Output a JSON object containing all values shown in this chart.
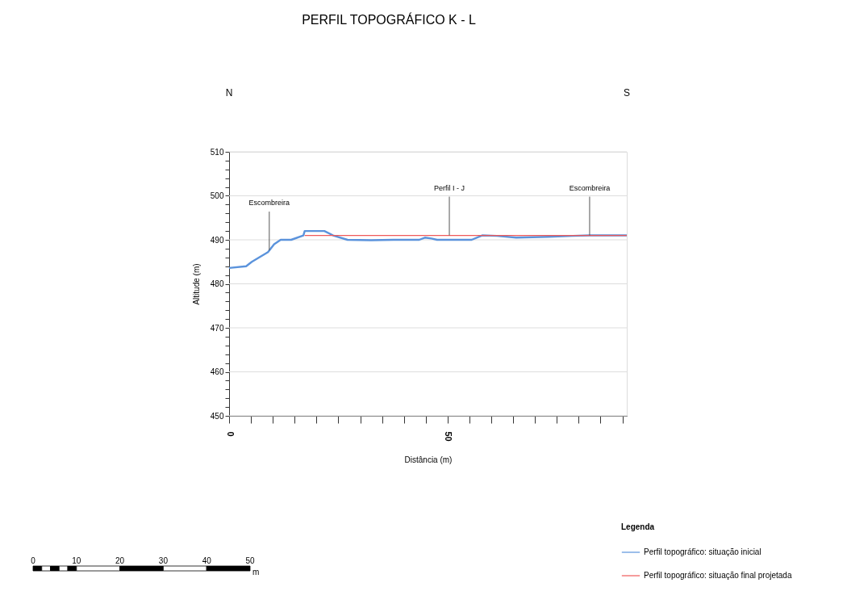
{
  "chart_data": {
    "type": "line",
    "title": "PERFIL TOPOGRÁFICO K - L",
    "xlabel": "Distância (m)",
    "ylabel": "Altitude (m)",
    "legend_title": "Legenda",
    "legend": "bottom right",
    "grid": "y",
    "xlim": [
      0,
      91
    ],
    "ylim": [
      450,
      510
    ],
    "xticks": [
      0,
      {
        "value": 5,
        "label": null
      },
      {
        "value": 10,
        "label": null
      },
      {
        "value": 15,
        "label": null
      },
      {
        "value": 20,
        "label": null
      },
      {
        "value": 25,
        "label": null
      },
      {
        "value": 30,
        "label": null
      },
      {
        "value": 35,
        "label": null
      },
      {
        "value": 40,
        "label": null
      },
      {
        "value": 45,
        "label": null
      },
      50,
      {
        "value": 55,
        "label": null
      },
      {
        "value": 60,
        "label": null
      },
      {
        "value": 65,
        "label": null
      },
      {
        "value": 70,
        "label": null
      },
      {
        "value": 75,
        "label": null
      },
      {
        "value": 80,
        "label": null
      },
      {
        "value": 85,
        "label": null
      },
      {
        "value": 90,
        "label": null
      }
    ],
    "yticks": [
      450,
      {
        "value": 452,
        "label": null
      },
      {
        "value": 454,
        "label": null
      },
      {
        "value": 456,
        "label": null
      },
      {
        "value": 458,
        "label": null
      },
      460,
      {
        "value": 462,
        "label": null
      },
      {
        "value": 464,
        "label": null
      },
      {
        "value": 466,
        "label": null
      },
      {
        "value": 468,
        "label": null
      },
      470,
      {
        "value": 472,
        "label": null
      },
      {
        "value": 474,
        "label": null
      },
      {
        "value": 476,
        "label": null
      },
      {
        "value": 478,
        "label": null
      },
      480,
      {
        "value": 482,
        "label": null
      },
      {
        "value": 484,
        "label": null
      },
      {
        "value": 486,
        "label": null
      },
      {
        "value": 488,
        "label": null
      },
      490,
      {
        "value": 492,
        "label": null
      },
      {
        "value": 494,
        "label": null
      },
      {
        "value": 496,
        "label": null
      },
      {
        "value": 498,
        "label": null
      },
      500,
      {
        "value": 502,
        "label": null
      },
      {
        "value": 504,
        "label": null
      },
      {
        "value": 506,
        "label": null
      },
      {
        "value": 508,
        "label": null
      },
      510
    ],
    "series": [
      {
        "name": "Perfil topográfico: situação inicial",
        "color": "#5b93dc",
        "x": [
          0,
          3.9,
          5.2,
          8.9,
          10.3,
          11.8,
          14.2,
          17,
          17.3,
          21.8,
          23.8,
          27.1,
          32.5,
          37.6,
          43.5,
          44.8,
          46.3,
          47.6,
          55.5,
          57.9,
          61.3,
          65.7,
          73.1,
          78.6,
          82.5,
          91
        ],
        "values": [
          483.6,
          484,
          485,
          487.2,
          489,
          490,
          490,
          491,
          492,
          492,
          491,
          490,
          489.9,
          490,
          490,
          490.5,
          490.3,
          490,
          490,
          491,
          490.9,
          490.5,
          490.7,
          490.9,
          491,
          491
        ]
      },
      {
        "name": "Perfil topográfico: situação final projetada",
        "color": "#f05a5a",
        "x": [
          17.3,
          91
        ],
        "values": [
          491,
          491
        ]
      }
    ],
    "annotations": [
      "N",
      "S",
      "0",
      "10",
      "20",
      "30",
      "40",
      "50",
      "m",
      {
        "text": "Escombreira",
        "x": 9.2,
        "y": 487.6
      },
      {
        "text": "Perfil I - J",
        "x": 50.4,
        "y": 491
      },
      {
        "text": "Escombreira",
        "x": 82.5,
        "y": 491
      }
    ]
  }
}
